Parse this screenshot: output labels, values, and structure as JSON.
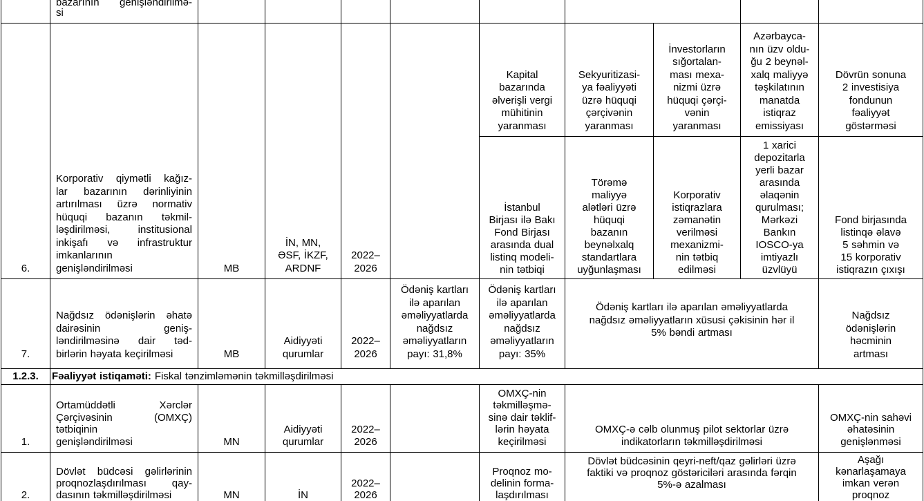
{
  "colors": {
    "text": "#000000",
    "border": "#000000",
    "background": "#ffffff"
  },
  "r0": {
    "activity": [
      "bazarının genişləndirilmə-",
      "si"
    ]
  },
  "r6": {
    "num": "6.",
    "activity": [
      "Korporativ qiymətli kağız-",
      "lar bazarının dərinliyinin",
      "artırılması üzrə normativ",
      "hüquqi bazanın təkmil-",
      "ləşdirilməsi, institusional",
      "inkişafı və infrastruktur",
      "imkanlarının",
      "genişləndirilməsi"
    ],
    "executor": "MB",
    "partners": [
      "İN, MN,",
      "ƏSF, İKZF,",
      "ARDNF"
    ],
    "period": [
      "2022–",
      "2026"
    ],
    "ind_top": [
      [
        "Kapital",
        "bazarında",
        "əlverişli vergi",
        "mühitinin",
        "yaranması"
      ],
      [
        "Sekyuritizasi-",
        "ya fəaliyyəti",
        "üzrə hüquqi",
        "çərçivənin",
        "yaranması"
      ],
      [
        "İnvestorların",
        "sığortalan-",
        "ması mexa-",
        "nizmi üzrə",
        "hüquqi çərçi-",
        "vənin",
        "yaranması"
      ],
      [
        "Azərbayca-",
        "nın üzv oldu-",
        "ğu 2 beynəl-",
        "xalq maliyyə",
        "təşkilatının",
        "manatda",
        "istiqraz",
        "emissiyası"
      ],
      [
        "Dövrün sonuna",
        "2 investisiya",
        "fondunun",
        "fəaliyyət",
        "göstərməsi"
      ]
    ],
    "ind_bottom": [
      [
        "İstanbul",
        "Birjası ilə Bakı",
        "Fond Birjası",
        "arasında dual",
        "listinq modeli-",
        "nin tətbiqi"
      ],
      [
        "Törəmə",
        "maliyyə",
        "alətləri üzrə",
        "hüquqi",
        "bazanın",
        "beynəlxalq",
        "standartlara",
        "uyğunlaşması"
      ],
      [
        "Korporativ",
        "istiqrazlara",
        "zəmanətin",
        "verilməsi",
        "mexanizmi-",
        "nin tətbiq",
        "edilməsi"
      ],
      [
        "1 xarici",
        "depozitarla",
        "yerli bazar",
        "arasında",
        "əlaqənin",
        "qurulması;",
        "Mərkəzi",
        "Bankın",
        "IOSCO-ya",
        "imtiyazlı",
        "üzvlüyü"
      ],
      [
        "Fond birjasında",
        "listinqə əlavə",
        "5 səhmin və",
        "15 korporativ",
        "istiqrazın çıxışı"
      ]
    ]
  },
  "r7": {
    "num": "7.",
    "activity": [
      "Nağdsız ödənişlərin əhatə",
      "dairəsinin geniş-",
      "ləndirilməsinə dair təd-",
      "birlərin həyata keçirilməsi"
    ],
    "executor": "MB",
    "partners": [
      "Aidiyyəti",
      "qurumlar"
    ],
    "period": [
      "2022–",
      "2026"
    ],
    "baseline": [
      "Ödəniş kartları",
      "ilə aparılan",
      "əməliyyatlarda",
      "nağdsız",
      "əməliyyatların",
      "payı: 31,8%"
    ],
    "target_first": [
      "Ödəniş kartları",
      "ilə aparılan",
      "əməliyyatlarda",
      "nağdsız",
      "əməliyyatların",
      "payı: 35%"
    ],
    "target_merged": [
      "Ödəniş kartları ilə aparılan əməliyyatlarda",
      "nağdsız əməliyyatların xüsusi çəkisinin hər il",
      "5% bəndi artması"
    ],
    "outcome": [
      "Nağdsız",
      "ödənişlərin",
      "həcminin",
      "artması"
    ]
  },
  "section": {
    "num": "1.2.3.",
    "label_bold": "Fəaliyyət istiqaməti:",
    "label_rest": "Fiskal tənzimləmənin təkmilləşdirilməsi"
  },
  "r1": {
    "num": "1.",
    "activity": [
      "Ortamüddətli Xərclər",
      "Çərçivəsinin (OMXÇ)",
      "tətbiqinin",
      "genişləndirilməsi"
    ],
    "executor": "MN",
    "partners": [
      "Aidiyyəti",
      "qurumlar"
    ],
    "period": [
      "2022–",
      "2026"
    ],
    "target_first": [
      "OMXÇ-nin",
      "təkmilləşmə-",
      "sinə dair təklif-",
      "lərin həyata",
      "keçirilməsi"
    ],
    "target_merged": [
      "OMXÇ-ə cəlb olunmuş pilot sektorlar üzrə",
      "indikatorların təkmilləşdirilməsi"
    ],
    "outcome": [
      "OMXÇ-nin sahəvi",
      "əhatəsinin",
      "genişlənməsi"
    ]
  },
  "r2": {
    "num": "2.",
    "activity": [
      "Dövlət büdcəsi gəlirlərinin",
      "proqnozlaşdırılması qay-",
      "dasının təkmilləşdirilməsi"
    ],
    "executor": "MN",
    "partners": [
      "İN"
    ],
    "period": [
      "2022–",
      "2026"
    ],
    "target_first": [
      "Proqnoz mo-",
      "delinin forma-",
      "laşdırılması"
    ],
    "target_merged": [
      "Dövlət büdcəsinin qeyri-neft/qaz gəlirləri üzrə",
      "faktiki və proqnoz göstəriciləri arasında fərqin",
      "5%-ə azalması"
    ],
    "outcome": [
      "Aşağı",
      "kənarlaşamaya",
      "imkan verən",
      "proqnoz"
    ]
  }
}
